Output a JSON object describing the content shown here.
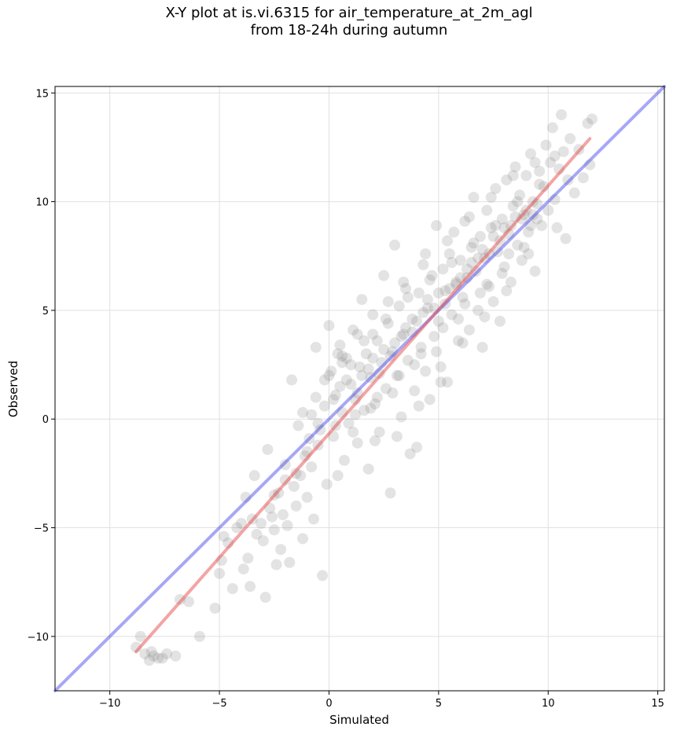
{
  "chart_data": {
    "type": "scatter",
    "title_line1": "X-Y plot at is.vi.6315 for air_temperature_at_2m_agl",
    "title_line2": "from 18-24h during autumn",
    "xlabel": "Simulated",
    "ylabel": "Observed",
    "xlim": [
      -12.5,
      15.3
    ],
    "ylim": [
      -12.5,
      15.3
    ],
    "xticks": [
      -10,
      -5,
      0,
      5,
      10,
      15
    ],
    "yticks": [
      -10,
      -5,
      0,
      5,
      10,
      15
    ],
    "xtick_labels": [
      "−10",
      "−5",
      "0",
      "5",
      "10",
      "15"
    ],
    "ytick_labels": [
      "−10",
      "−5",
      "0",
      "5",
      "10",
      "15"
    ],
    "grid": true,
    "point_color": "#808080",
    "one_to_one_line": {
      "color": "#3b3bea",
      "x": [
        -12.5,
        15.3
      ],
      "y": [
        -12.5,
        15.3
      ]
    },
    "fit_line": {
      "color": "#e84a4a",
      "x": [
        -8.8,
        11.9
      ],
      "y": [
        -10.7,
        12.9
      ]
    },
    "approx_point_count": 1500,
    "points": [
      [
        -8.8,
        -10.5
      ],
      [
        -8.6,
        -10.0
      ],
      [
        -8.4,
        -10.8
      ],
      [
        -8.2,
        -11.1
      ],
      [
        -8.0,
        -10.9
      ],
      [
        -7.6,
        -11.0
      ],
      [
        -7.4,
        -10.8
      ],
      [
        -7.0,
        -10.9
      ],
      [
        -8.1,
        -10.7
      ],
      [
        -7.8,
        -11.0
      ],
      [
        -6.8,
        -8.3
      ],
      [
        -6.4,
        -8.4
      ],
      [
        -5.9,
        -10.0
      ],
      [
        -5.2,
        -8.7
      ],
      [
        -5.0,
        -7.1
      ],
      [
        -4.9,
        -6.5
      ],
      [
        -4.8,
        -5.4
      ],
      [
        -4.6,
        -5.7
      ],
      [
        -4.4,
        -7.8
      ],
      [
        -4.2,
        -5.0
      ],
      [
        -4.0,
        -4.8
      ],
      [
        -3.9,
        -6.9
      ],
      [
        -3.8,
        -3.6
      ],
      [
        -3.7,
        -6.4
      ],
      [
        -3.6,
        -7.7
      ],
      [
        -3.5,
        -4.6
      ],
      [
        -3.4,
        -2.6
      ],
      [
        -3.3,
        -5.3
      ],
      [
        -3.1,
        -4.8
      ],
      [
        -3.0,
        -5.6
      ],
      [
        -2.9,
        -8.2
      ],
      [
        -2.8,
        -1.4
      ],
      [
        -2.7,
        -4.1
      ],
      [
        -2.6,
        -4.5
      ],
      [
        -2.5,
        -5.1
      ],
      [
        -2.4,
        -6.7
      ],
      [
        -2.3,
        -3.4
      ],
      [
        -2.2,
        -6.0
      ],
      [
        -2.1,
        -4.4
      ],
      [
        -2.0,
        -2.1
      ],
      [
        -1.9,
        -4.9
      ],
      [
        -1.8,
        -6.6
      ],
      [
        -1.7,
        1.8
      ],
      [
        -1.6,
        -3.1
      ],
      [
        -1.5,
        -4.0
      ],
      [
        -1.4,
        -0.3
      ],
      [
        -1.3,
        -2.6
      ],
      [
        -1.2,
        -5.5
      ],
      [
        -1.1,
        -1.7
      ],
      [
        -1.0,
        -3.6
      ],
      [
        -0.9,
        -0.9
      ],
      [
        -0.8,
        -2.2
      ],
      [
        -0.7,
        -4.6
      ],
      [
        -0.6,
        3.3
      ],
      [
        -0.5,
        -1.2
      ],
      [
        -0.4,
        -0.5
      ],
      [
        -0.3,
        -7.2
      ],
      [
        -0.2,
        0.6
      ],
      [
        -0.1,
        -3.0
      ],
      [
        0.0,
        4.3
      ],
      [
        0.1,
        2.2
      ],
      [
        0.2,
        -0.8
      ],
      [
        0.3,
        1.1
      ],
      [
        0.4,
        -2.6
      ],
      [
        0.5,
        3.4
      ],
      [
        0.6,
        0.3
      ],
      [
        0.7,
        -1.9
      ],
      [
        0.8,
        2.8
      ],
      [
        0.9,
        -0.2
      ],
      [
        1.0,
        1.6
      ],
      [
        1.1,
        4.1
      ],
      [
        1.2,
        0.9
      ],
      [
        1.3,
        -1.1
      ],
      [
        1.4,
        2.4
      ],
      [
        1.5,
        5.5
      ],
      [
        1.6,
        0.4
      ],
      [
        1.7,
        3.0
      ],
      [
        1.8,
        -2.3
      ],
      [
        1.9,
        1.9
      ],
      [
        2.0,
        4.8
      ],
      [
        2.1,
        0.7
      ],
      [
        2.2,
        3.6
      ],
      [
        2.3,
        -0.6
      ],
      [
        2.4,
        2.6
      ],
      [
        2.5,
        6.6
      ],
      [
        2.6,
        1.4
      ],
      [
        2.7,
        4.4
      ],
      [
        2.8,
        -3.4
      ],
      [
        2.9,
        3.1
      ],
      [
        3.0,
        8.0
      ],
      [
        3.1,
        2.0
      ],
      [
        3.2,
        5.2
      ],
      [
        3.3,
        0.1
      ],
      [
        3.4,
        3.9
      ],
      [
        3.5,
        6.0
      ],
      [
        3.6,
        2.7
      ],
      [
        3.7,
        -1.6
      ],
      [
        3.8,
        4.6
      ],
      [
        3.9,
        1.3
      ],
      [
        4.0,
        -1.3
      ],
      [
        4.1,
        5.8
      ],
      [
        4.2,
        3.3
      ],
      [
        4.3,
        7.1
      ],
      [
        4.4,
        2.2
      ],
      [
        4.5,
        5.1
      ],
      [
        4.6,
        0.9
      ],
      [
        4.7,
        6.6
      ],
      [
        4.8,
        3.8
      ],
      [
        4.9,
        8.9
      ],
      [
        5.0,
        4.5
      ],
      [
        5.1,
        2.4
      ],
      [
        5.2,
        6.9
      ],
      [
        5.3,
        5.3
      ],
      [
        5.4,
        1.7
      ],
      [
        5.5,
        7.6
      ],
      [
        5.6,
        4.8
      ],
      [
        5.7,
        8.6
      ],
      [
        5.8,
        6.2
      ],
      [
        5.9,
        3.6
      ],
      [
        6.0,
        7.3
      ],
      [
        6.1,
        5.6
      ],
      [
        6.2,
        9.1
      ],
      [
        6.3,
        6.5
      ],
      [
        6.4,
        4.1
      ],
      [
        6.5,
        7.9
      ],
      [
        6.6,
        10.2
      ],
      [
        6.7,
        6.8
      ],
      [
        6.8,
        5.0
      ],
      [
        6.9,
        8.4
      ],
      [
        7.0,
        3.3
      ],
      [
        7.1,
        7.4
      ],
      [
        7.2,
        9.6
      ],
      [
        7.3,
        6.1
      ],
      [
        7.4,
        8.8
      ],
      [
        7.5,
        5.4
      ],
      [
        7.6,
        10.6
      ],
      [
        7.7,
        7.7
      ],
      [
        7.8,
        4.5
      ],
      [
        7.9,
        9.2
      ],
      [
        8.0,
        7.0
      ],
      [
        8.1,
        11.0
      ],
      [
        8.2,
        8.5
      ],
      [
        8.3,
        6.3
      ],
      [
        8.4,
        9.8
      ],
      [
        8.5,
        11.6
      ],
      [
        8.6,
        8.0
      ],
      [
        8.7,
        10.3
      ],
      [
        8.8,
        7.3
      ],
      [
        8.9,
        9.4
      ],
      [
        9.0,
        11.2
      ],
      [
        9.1,
        8.6
      ],
      [
        9.2,
        12.2
      ],
      [
        9.3,
        10.0
      ],
      [
        9.4,
        6.8
      ],
      [
        9.5,
        9.2
      ],
      [
        9.6,
        11.4
      ],
      [
        9.7,
        8.9
      ],
      [
        9.8,
        10.7
      ],
      [
        9.9,
        12.6
      ],
      [
        10.0,
        9.6
      ],
      [
        10.1,
        11.8
      ],
      [
        10.2,
        13.4
      ],
      [
        10.3,
        10.1
      ],
      [
        10.4,
        8.8
      ],
      [
        10.5,
        11.5
      ],
      [
        10.6,
        14.0
      ],
      [
        10.7,
        12.3
      ],
      [
        10.8,
        8.3
      ],
      [
        10.9,
        11.0
      ],
      [
        11.0,
        12.9
      ],
      [
        11.2,
        10.4
      ],
      [
        11.4,
        12.4
      ],
      [
        11.6,
        11.1
      ],
      [
        11.8,
        13.6
      ],
      [
        11.9,
        11.7
      ],
      [
        12.0,
        13.8
      ],
      [
        0.5,
        1.5
      ],
      [
        1.0,
        2.5
      ],
      [
        1.5,
        2.0
      ],
      [
        2.0,
        2.8
      ],
      [
        2.5,
        3.2
      ],
      [
        3.0,
        3.5
      ],
      [
        3.5,
        4.2
      ],
      [
        4.0,
        4.5
      ],
      [
        4.5,
        5.5
      ],
      [
        5.0,
        5.8
      ],
      [
        5.5,
        6.0
      ],
      [
        6.0,
        6.5
      ],
      [
        6.5,
        7.2
      ],
      [
        7.0,
        7.8
      ],
      [
        7.5,
        8.4
      ],
      [
        8.0,
        8.8
      ],
      [
        8.5,
        9.3
      ],
      [
        9.0,
        9.6
      ],
      [
        9.5,
        9.9
      ],
      [
        0.2,
        0.9
      ],
      [
        0.8,
        1.8
      ],
      [
        1.3,
        1.2
      ],
      [
        1.8,
        2.3
      ],
      [
        2.3,
        2.1
      ],
      [
        2.8,
        2.9
      ],
      [
        3.3,
        3.8
      ],
      [
        3.8,
        4.0
      ],
      [
        4.3,
        4.9
      ],
      [
        4.8,
        5.1
      ],
      [
        5.3,
        5.9
      ],
      [
        5.8,
        6.3
      ],
      [
        6.3,
        6.9
      ],
      [
        6.8,
        7.4
      ],
      [
        7.3,
        7.6
      ],
      [
        7.8,
        8.2
      ],
      [
        8.3,
        8.9
      ],
      [
        8.8,
        9.2
      ],
      [
        9.3,
        9.4
      ],
      [
        -0.5,
        -0.2
      ],
      [
        -1.0,
        -1.5
      ],
      [
        -1.5,
        -2.5
      ],
      [
        -2.0,
        -2.8
      ],
      [
        -2.5,
        -3.5
      ],
      [
        -0.8,
        0.2
      ],
      [
        0.3,
        -0.3
      ],
      [
        1.2,
        0.2
      ],
      [
        2.2,
        1.0
      ],
      [
        3.2,
        2.0
      ],
      [
        4.2,
        3.0
      ],
      [
        5.2,
        4.2
      ],
      [
        6.2,
        5.3
      ],
      [
        7.2,
        6.2
      ],
      [
        8.2,
        7.6
      ],
      [
        9.2,
        8.9
      ],
      [
        0.6,
        2.6
      ],
      [
        1.6,
        3.6
      ],
      [
        2.6,
        4.6
      ],
      [
        3.6,
        5.6
      ],
      [
        4.6,
        6.4
      ],
      [
        5.6,
        7.2
      ],
      [
        6.6,
        8.1
      ],
      [
        7.6,
        8.9
      ],
      [
        8.6,
        10.0
      ],
      [
        9.6,
        10.8
      ],
      [
        1.9,
        0.5
      ],
      [
        2.9,
        1.2
      ],
      [
        3.9,
        2.5
      ],
      [
        4.9,
        3.1
      ],
      [
        5.9,
        4.6
      ],
      [
        6.9,
        5.8
      ],
      [
        7.9,
        6.7
      ],
      [
        8.9,
        7.9
      ],
      [
        -0.2,
        1.8
      ],
      [
        0.4,
        3.0
      ],
      [
        1.1,
        -0.6
      ],
      [
        2.1,
        -1.0
      ],
      [
        3.1,
        -0.8
      ],
      [
        4.1,
        0.6
      ],
      [
        5.1,
        1.7
      ],
      [
        6.1,
        3.5
      ],
      [
        7.1,
        4.7
      ],
      [
        8.1,
        5.9
      ],
      [
        9.1,
        7.6
      ],
      [
        -1.2,
        0.3
      ],
      [
        -0.6,
        1.0
      ],
      [
        0.0,
        2.0
      ],
      [
        0.6,
        2.9
      ],
      [
        1.3,
        3.9
      ],
      [
        2.0,
        3.9
      ],
      [
        2.7,
        5.4
      ],
      [
        3.4,
        6.3
      ],
      [
        4.4,
        7.6
      ],
      [
        5.4,
        8.2
      ],
      [
        6.4,
        9.3
      ],
      [
        7.4,
        10.2
      ],
      [
        8.4,
        11.2
      ],
      [
        9.4,
        11.8
      ],
      [
        10.3,
        12.1
      ]
    ]
  }
}
